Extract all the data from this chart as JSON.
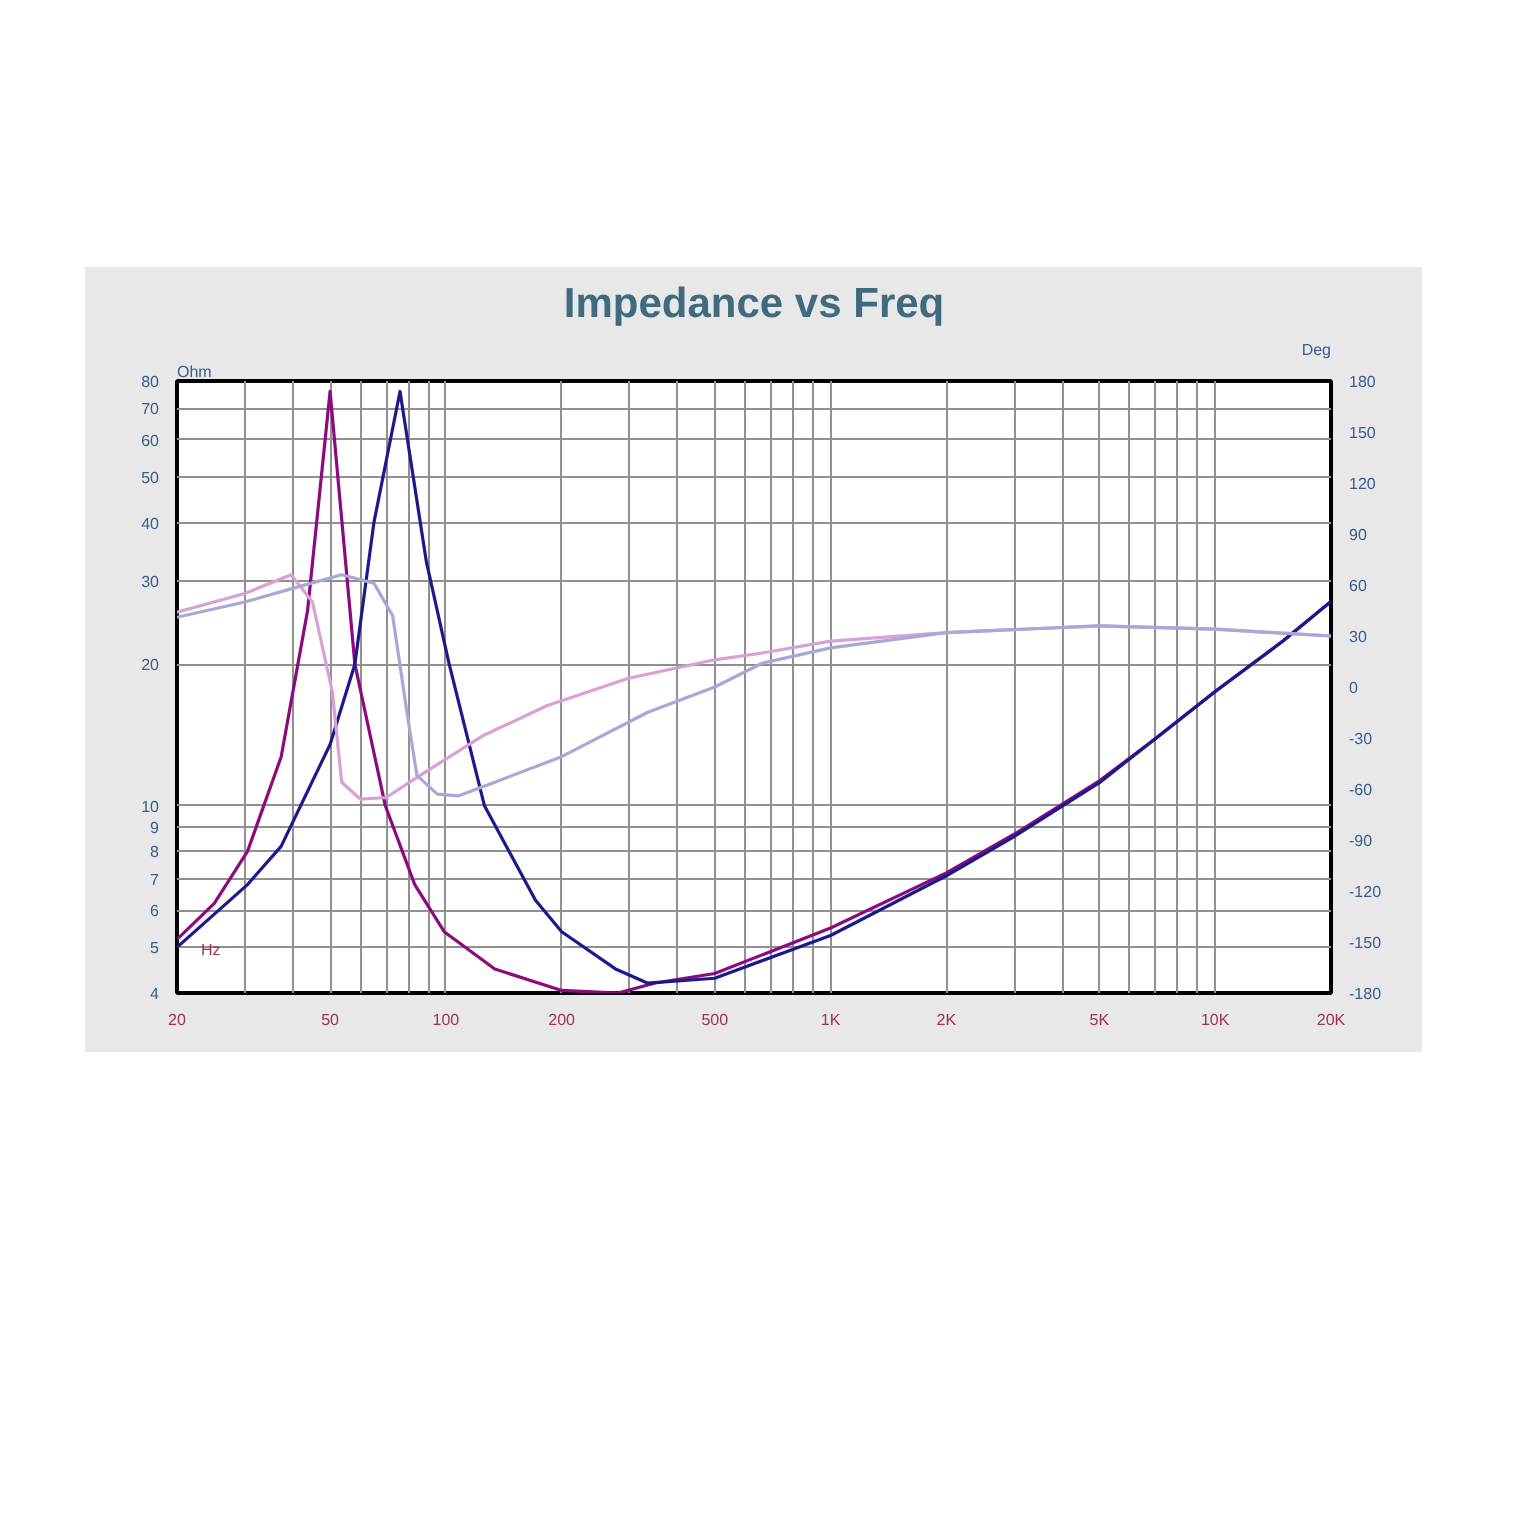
{
  "chart_data": {
    "type": "line",
    "title": "Impedance vs Freq",
    "xlabel": "Hz",
    "ylabel": "Ohm",
    "y2label": "Deg",
    "log": "xy",
    "grid": true,
    "marker": "none",
    "line_style": "solid",
    "xlim": [
      20,
      20000
    ],
    "ylim": [
      4,
      80
    ],
    "y2lim": [
      -180,
      180
    ],
    "xticks": [
      20,
      {
        "value": 30,
        "label": null
      },
      {
        "value": 40,
        "label": null
      },
      50,
      {
        "value": 60,
        "label": null
      },
      {
        "value": 70,
        "label": null
      },
      {
        "value": 80,
        "label": null
      },
      {
        "value": 90,
        "label": null
      },
      100,
      200,
      {
        "value": 300,
        "label": null
      },
      {
        "value": 400,
        "label": null
      },
      500,
      {
        "value": 600,
        "label": null
      },
      {
        "value": 700,
        "label": null
      },
      {
        "value": 800,
        "label": null
      },
      {
        "value": 900,
        "label": null
      },
      {
        "value": 1000,
        "label": "1K"
      },
      {
        "value": 2000,
        "label": "2K"
      },
      {
        "value": 3000,
        "label": null
      },
      {
        "value": 4000,
        "label": null
      },
      {
        "value": 5000,
        "label": "5K"
      },
      {
        "value": 6000,
        "label": null
      },
      {
        "value": 7000,
        "label": null
      },
      {
        "value": 8000,
        "label": null
      },
      {
        "value": 9000,
        "label": null
      },
      {
        "value": 10000,
        "label": "10K"
      },
      {
        "value": 20000,
        "label": "20K"
      }
    ],
    "yticks": [
      4,
      5,
      6,
      7,
      8,
      9,
      10,
      20,
      30,
      40,
      50,
      60,
      70,
      80
    ],
    "y2ticks": [
      -180,
      -150,
      -120,
      -90,
      -60,
      -30,
      0,
      30,
      60,
      90,
      120,
      150,
      180
    ],
    "series": [
      {
        "color": "#8b0a7e",
        "x": [
          20,
          25,
          30.5,
          37.3,
          43.7,
          50,
          58,
          69.6,
          83,
          99,
          134,
          200,
          280,
          350,
          500,
          1000,
          2000,
          3000,
          5000,
          7000,
          10000,
          15000,
          20000
        ],
        "values": [
          5.2,
          6.2,
          8,
          12.7,
          26,
          76,
          20,
          10,
          6.8,
          5.4,
          4.5,
          4.05,
          4.0,
          4.2,
          4.4,
          5.5,
          7.2,
          8.7,
          11.3,
          13.9,
          17.5,
          22.4,
          27.2
        ]
      },
      {
        "color": "#1a1a8c",
        "x": [
          20,
          30.5,
          37.3,
          50,
          58,
          65,
          76,
          89,
          102,
          126,
          171,
          200,
          276,
          334,
          500,
          1000,
          2000,
          3000,
          5000,
          7000,
          10000,
          15000,
          20000
        ],
        "values": [
          5.0,
          6.8,
          8.2,
          13.5,
          20,
          40,
          76,
          33,
          20,
          10,
          6.3,
          5.4,
          4.5,
          4.2,
          4.3,
          5.3,
          7.1,
          8.6,
          11.2,
          13.9,
          17.5,
          22.4,
          27.2
        ]
      },
      {
        "color": "#d9a0d8",
        "axis": "y2",
        "x": [
          20,
          30,
          39.6,
          45,
          50.7,
          53.6,
          60,
          70,
          83,
          124,
          183,
          297,
          500,
          664,
          1000,
          2000,
          5000,
          10000,
          20000
        ],
        "values": [
          44,
          55,
          66,
          50,
          -3,
          -56,
          -66,
          -65,
          -54,
          -29,
          -11,
          5,
          16,
          20,
          27,
          32,
          36,
          34,
          30
        ]
      },
      {
        "color": "#a8a8d8",
        "axis": "y2",
        "x": [
          20,
          30,
          40,
          53.6,
          65,
          72.7,
          79.6,
          84.1,
          95,
          108,
          134,
          200,
          334,
          500,
          664,
          1000,
          2000,
          5000,
          10000,
          20000
        ],
        "values": [
          41,
          50,
          58,
          66,
          61,
          42,
          -18,
          -52,
          -63,
          -64,
          -56,
          -41,
          -15,
          0,
          14,
          23,
          32,
          36,
          34,
          30
        ]
      }
    ]
  }
}
